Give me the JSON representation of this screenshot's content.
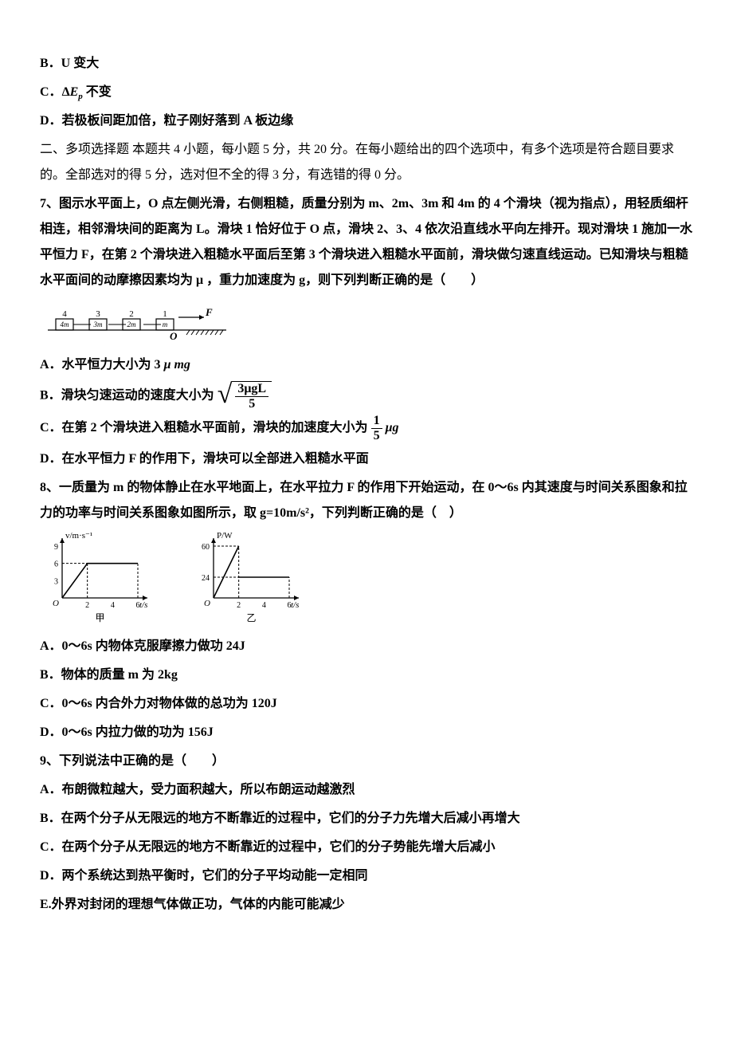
{
  "options_pre": {
    "B": "B．U 变大",
    "C_prefix": "C．",
    "C_math": "ΔE",
    "C_sub": "p",
    "C_suffix": " 不变",
    "D": "D．若极板间距加倍，粒子刚好落到 A 板边缘"
  },
  "section2": "二、多项选择题 本题共 4 小题，每小题 5 分，共 20 分。在每小题给出的四个选项中，有多个选项是符合题目要求的。全部选对的得 5 分，选对但不全的得 3 分，有选错的得 0 分。",
  "q7": {
    "stem1": "7、图示水平面上，O 点左侧光滑，右侧粗糙，质量分别为 m、2m、3m 和 4m 的 4 个滑块（视为指点），用轻质细杆相连，相邻滑块间的距离为 L。滑块 1 恰好位于 O 点，滑块 2、3、4 依次沿直线水平向左排开。现对滑块 1 施加一水平恒力 F，在第 2 个滑块进入粗糙水平面后至第 3 个滑块进入粗糙水平面前，滑块做匀速直线运动。已知滑块与粗糙水平面间的动摩擦因素均为 μ ，重力加速度为 g，则下列判断正确的是（　　）",
    "diagram": {
      "blocks": [
        "4m",
        "3m",
        "2m",
        "m"
      ],
      "labels_above": [
        "4",
        "3",
        "2",
        "1"
      ],
      "origin_label": "O",
      "force_label": "F",
      "block_w": 22,
      "block_h": 14,
      "gap": 20,
      "colors": {
        "line": "#000000"
      }
    },
    "A": "A．水平恒力大小为 3 μ mg",
    "B_prefix": "B．滑块匀速运动的速度大小为 ",
    "B_frac_num": "3μgL",
    "B_frac_den": "5",
    "C_prefix": "C．在第 2 个滑块进入粗糙水平面前，滑块的加速度大小为 ",
    "C_frac_num": "1",
    "C_frac_den": "5",
    "C_suffix": " μg",
    "D": "D．在水平恒力 F 的作用下，滑块可以全部进入粗糙水平面"
  },
  "q8": {
    "stem": "8、一质量为 m 的物体静止在水平地面上，在水平拉力 F 的作用下开始运动，在 0～6s 内其速度与时间关系图象和拉力的功率与时间关系图象如图所示，取 g=10m/s²，下列判断正确的是（　）",
    "chart1": {
      "type": "line",
      "xlabel": "t/s",
      "ylabel": "v/m·s⁻¹",
      "yticks": [
        3,
        6,
        9
      ],
      "xticks": [
        2,
        4,
        6
      ],
      "caption": "甲",
      "data_points": [
        [
          0,
          0
        ],
        [
          2,
          6
        ],
        [
          6,
          6
        ]
      ],
      "axis_color": "#000000",
      "ymax": 9,
      "xmax": 6
    },
    "chart2": {
      "type": "line",
      "xlabel": "t/s",
      "ylabel": "P/W",
      "yticks": [
        24,
        60
      ],
      "xticks": [
        2,
        4,
        6
      ],
      "caption": "乙",
      "data_points": [
        [
          0,
          0
        ],
        [
          2,
          60
        ],
        [
          2,
          24
        ],
        [
          6,
          24
        ]
      ],
      "axis_color": "#000000",
      "ymax": 60,
      "xmax": 6
    },
    "A": "A．0～6s 内物体克服摩擦力做功 24J",
    "B": "B．物体的质量 m 为 2kg",
    "C": "C．0～6s 内合外力对物体做的总功为 120J",
    "D": "D．0～6s 内拉力做的功为 156J"
  },
  "q9": {
    "stem": "9、下列说法中正确的是（　　）",
    "A": "A．布朗微粒越大，受力面积越大，所以布朗运动越激烈",
    "B": "B．在两个分子从无限远的地方不断靠近的过程中，它们的分子力先增大后减小再增大",
    "C": "C．在两个分子从无限远的地方不断靠近的过程中，它们的分子势能先增大后减小",
    "D": "D．两个系统达到热平衡时，它们的分子平均动能一定相同",
    "E": "E.外界对封闭的理想气体做正功，气体的内能可能减少"
  }
}
